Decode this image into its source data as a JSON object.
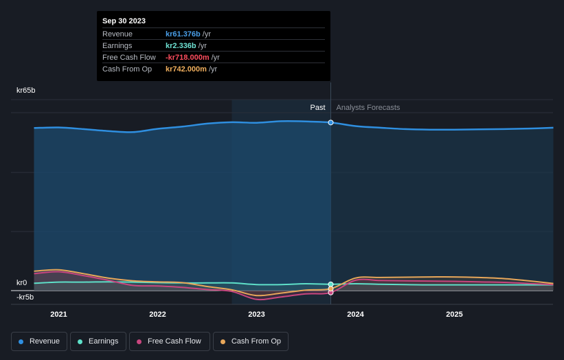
{
  "tooltip": {
    "date": "Sep 30 2023",
    "rows": [
      {
        "label": "Revenue",
        "value": "kr61.376b",
        "unit": "/yr",
        "color": "#4a9fe8"
      },
      {
        "label": "Earnings",
        "value": "kr2.336b",
        "unit": "/yr",
        "color": "#6fe3d4"
      },
      {
        "label": "Free Cash Flow",
        "value": "-kr718.000m",
        "unit": "/yr",
        "color": "#ff4d5e"
      },
      {
        "label": "Cash From Op",
        "value": "kr742.000m",
        "unit": "/yr",
        "color": "#f2b05e"
      }
    ]
  },
  "legend": [
    {
      "label": "Revenue",
      "color": "#2f8fe0"
    },
    {
      "label": "Earnings",
      "color": "#5ee0c9"
    },
    {
      "label": "Free Cash Flow",
      "color": "#c9467f"
    },
    {
      "label": "Cash From Op",
      "color": "#e8a75a"
    }
  ],
  "chart_data": {
    "type": "line",
    "y_unit": "kr billions",
    "ylim": [
      -5,
      65
    ],
    "y_ticks": [
      {
        "label": "kr65b",
        "value": 65
      },
      {
        "label": "kr0",
        "value": 0
      },
      {
        "label": "-kr5b",
        "value": -5
      }
    ],
    "x_ticks": [
      {
        "label": "2021",
        "value": 2021.0
      },
      {
        "label": "2022",
        "value": 2022.0
      },
      {
        "label": "2023",
        "value": 2023.0
      },
      {
        "label": "2024",
        "value": 2024.0
      },
      {
        "label": "2025",
        "value": 2025.0
      }
    ],
    "past_label": "Past",
    "forecast_label": "Analysts Forecasts",
    "divider_x": 2023.75,
    "series": [
      {
        "name": "Revenue",
        "color": "#2f8fe0",
        "points": [
          [
            2020.75,
            59.4
          ],
          [
            2021.0,
            59.6
          ],
          [
            2021.25,
            59.0
          ],
          [
            2021.5,
            58.3
          ],
          [
            2021.75,
            57.9
          ],
          [
            2022.0,
            59.1
          ],
          [
            2022.25,
            59.9
          ],
          [
            2022.5,
            61.0
          ],
          [
            2022.75,
            61.5
          ],
          [
            2023.0,
            61.3
          ],
          [
            2023.25,
            61.9
          ],
          [
            2023.5,
            61.8
          ],
          [
            2023.75,
            61.4
          ],
          [
            2024.0,
            60.1
          ],
          [
            2024.25,
            59.5
          ],
          [
            2024.5,
            59.0
          ],
          [
            2024.75,
            58.8
          ],
          [
            2025.0,
            58.8
          ],
          [
            2025.25,
            58.9
          ],
          [
            2025.5,
            59.0
          ],
          [
            2025.75,
            59.2
          ],
          [
            2026.0,
            59.5
          ]
        ]
      },
      {
        "name": "Earnings",
        "color": "#5ee0c9",
        "points": [
          [
            2020.75,
            2.7
          ],
          [
            2021.0,
            3.1
          ],
          [
            2021.25,
            3.1
          ],
          [
            2021.5,
            3.2
          ],
          [
            2021.75,
            3.1
          ],
          [
            2022.0,
            2.9
          ],
          [
            2022.25,
            2.8
          ],
          [
            2022.5,
            2.8
          ],
          [
            2022.75,
            2.8
          ],
          [
            2023.0,
            2.2
          ],
          [
            2023.25,
            2.2
          ],
          [
            2023.5,
            2.5
          ],
          [
            2023.75,
            2.3
          ],
          [
            2024.0,
            2.5
          ],
          [
            2024.25,
            2.3
          ],
          [
            2024.5,
            2.2
          ],
          [
            2024.75,
            2.1
          ],
          [
            2025.0,
            2.1
          ],
          [
            2025.25,
            2.1
          ],
          [
            2025.5,
            2.1
          ],
          [
            2025.75,
            2.1
          ],
          [
            2026.0,
            2.1
          ]
        ]
      },
      {
        "name": "Free Cash Flow",
        "color": "#c9467f",
        "points": [
          [
            2020.75,
            6.2
          ],
          [
            2021.0,
            6.9
          ],
          [
            2021.25,
            5.5
          ],
          [
            2021.5,
            3.8
          ],
          [
            2021.75,
            1.9
          ],
          [
            2022.0,
            1.7
          ],
          [
            2022.25,
            1.2
          ],
          [
            2022.5,
            0.4
          ],
          [
            2022.75,
            -0.3
          ],
          [
            2023.0,
            -3.2
          ],
          [
            2023.25,
            -2.3
          ],
          [
            2023.5,
            -1.2
          ],
          [
            2023.75,
            -0.7
          ],
          [
            2024.0,
            3.8
          ],
          [
            2024.25,
            3.7
          ],
          [
            2024.5,
            3.6
          ],
          [
            2024.75,
            3.5
          ],
          [
            2025.0,
            3.4
          ],
          [
            2025.25,
            3.2
          ],
          [
            2025.5,
            3.0
          ],
          [
            2025.75,
            2.6
          ],
          [
            2026.0,
            2.2
          ]
        ]
      },
      {
        "name": "Cash From Op",
        "color": "#e8a75a",
        "points": [
          [
            2020.75,
            7.1
          ],
          [
            2021.0,
            7.6
          ],
          [
            2021.25,
            6.2
          ],
          [
            2021.5,
            4.6
          ],
          [
            2021.75,
            3.6
          ],
          [
            2022.0,
            3.2
          ],
          [
            2022.25,
            2.9
          ],
          [
            2022.5,
            1.5
          ],
          [
            2022.75,
            0.3
          ],
          [
            2023.0,
            -1.8
          ],
          [
            2023.25,
            -0.9
          ],
          [
            2023.5,
            0.2
          ],
          [
            2023.75,
            0.7
          ],
          [
            2024.0,
            4.6
          ],
          [
            2024.25,
            4.8
          ],
          [
            2024.5,
            4.9
          ],
          [
            2024.75,
            5.0
          ],
          [
            2025.0,
            5.0
          ],
          [
            2025.25,
            4.8
          ],
          [
            2025.5,
            4.4
          ],
          [
            2025.75,
            3.6
          ],
          [
            2026.0,
            2.6
          ]
        ]
      }
    ]
  }
}
